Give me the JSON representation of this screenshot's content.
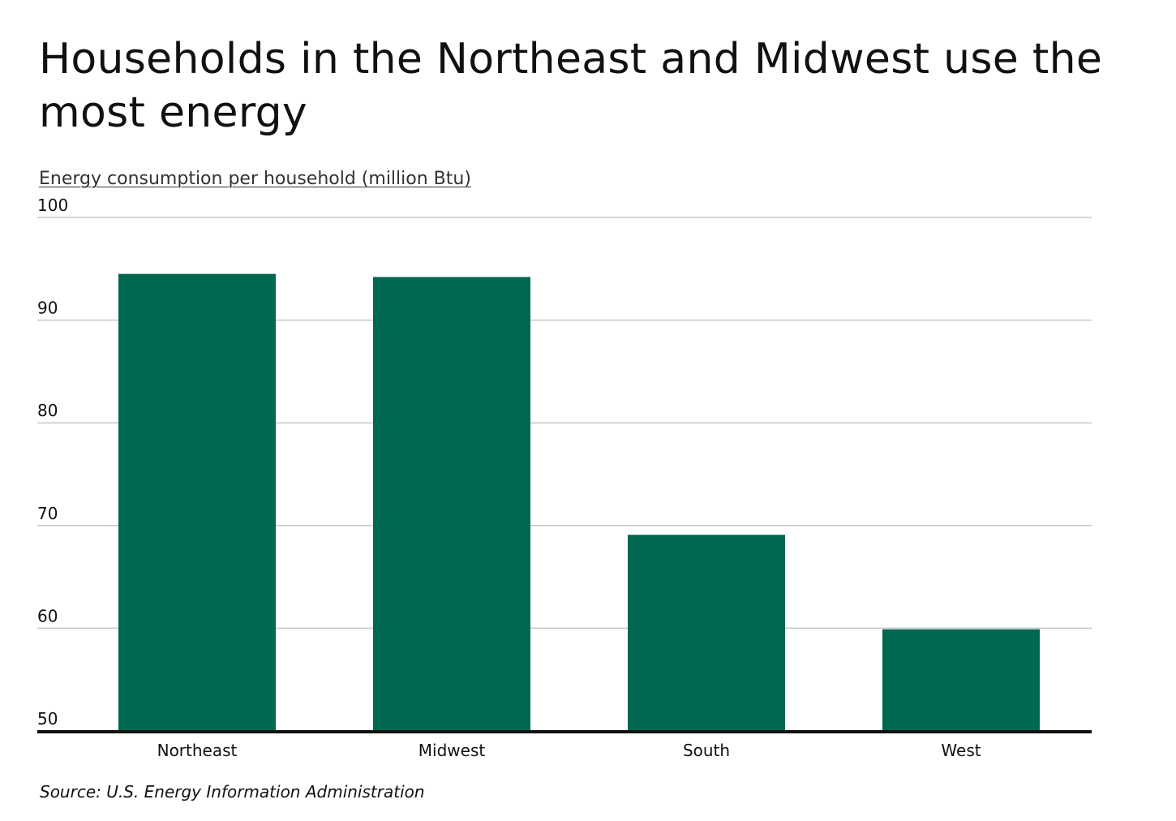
{
  "title": "Households in the Northeast and Midwest use the most energy",
  "source": "Source: U.S. Energy Information Administration",
  "colors": {
    "bar": "#006850",
    "grid": "#c8c8c8",
    "axis": "#111111",
    "text": "#111111"
  },
  "chart_data": {
    "type": "bar",
    "title": "Households in the Northeast and Midwest use the most energy",
    "ylabel": "Energy consumption per household (million Btu)",
    "xlabel": "",
    "categories": [
      "Northeast",
      "Midwest",
      "South",
      "West"
    ],
    "values": [
      94.5,
      94.2,
      69.1,
      59.9
    ],
    "ylim": [
      50,
      100
    ],
    "yticks": [
      50,
      60,
      70,
      80,
      90,
      100
    ],
    "grid": true,
    "legend": "none"
  }
}
